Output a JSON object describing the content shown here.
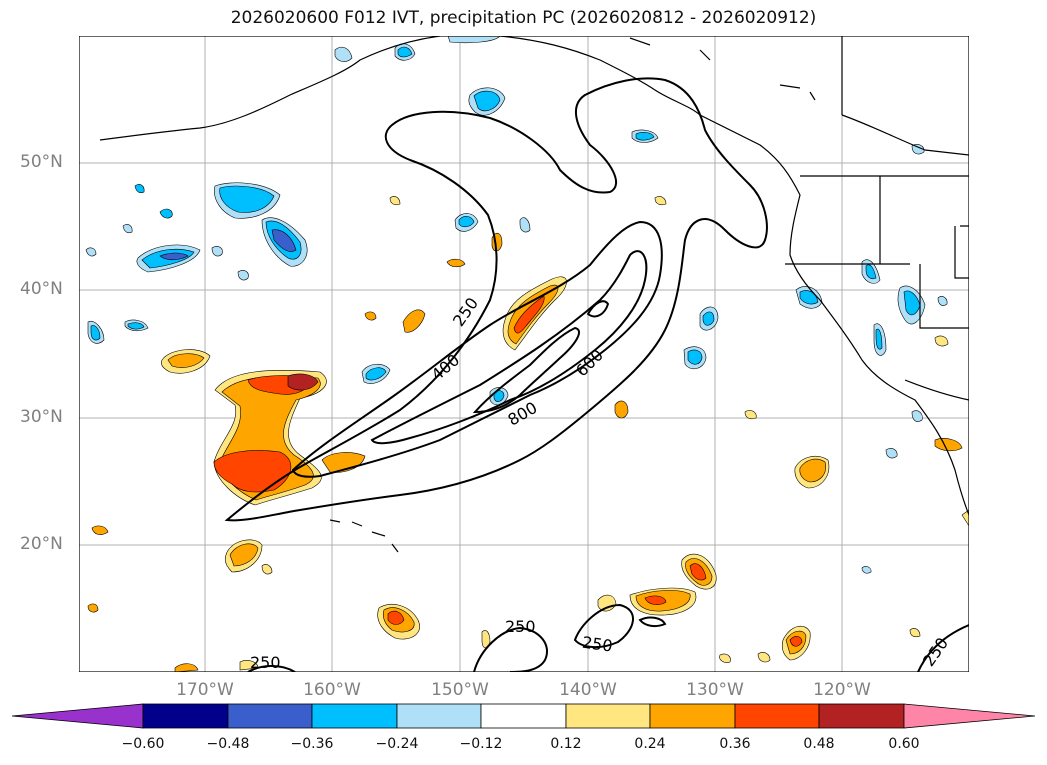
{
  "title": "2026020600 F012 IVT, precipitation PC (2026020812 - 2026020912)",
  "lat_labels": [
    "50°N",
    "40°N",
    "30°N",
    "20°N"
  ],
  "lon_labels": [
    "170°W",
    "160°W",
    "150°W",
    "140°W",
    "130°W",
    "120°W"
  ],
  "contour_labels": [
    "250",
    "400",
    "600",
    "800",
    "250",
    "250",
    "250",
    "250"
  ],
  "colorbar": {
    "ticks": [
      "−0.60",
      "−0.48",
      "−0.36",
      "−0.24",
      "−0.12",
      "0.12",
      "0.24",
      "0.36",
      "0.48",
      "0.60"
    ],
    "colors": [
      "#9932cc",
      "#00008b",
      "#3a5fcd",
      "#00bfff",
      "#afe0f7",
      "#ffffff",
      "#ffe680",
      "#ffa500",
      "#ff4500",
      "#b22222",
      "#ff85a8"
    ]
  },
  "colors": {
    "grid": "#b0b0b0",
    "contour": "#000000",
    "axis_label": "#808080"
  }
}
